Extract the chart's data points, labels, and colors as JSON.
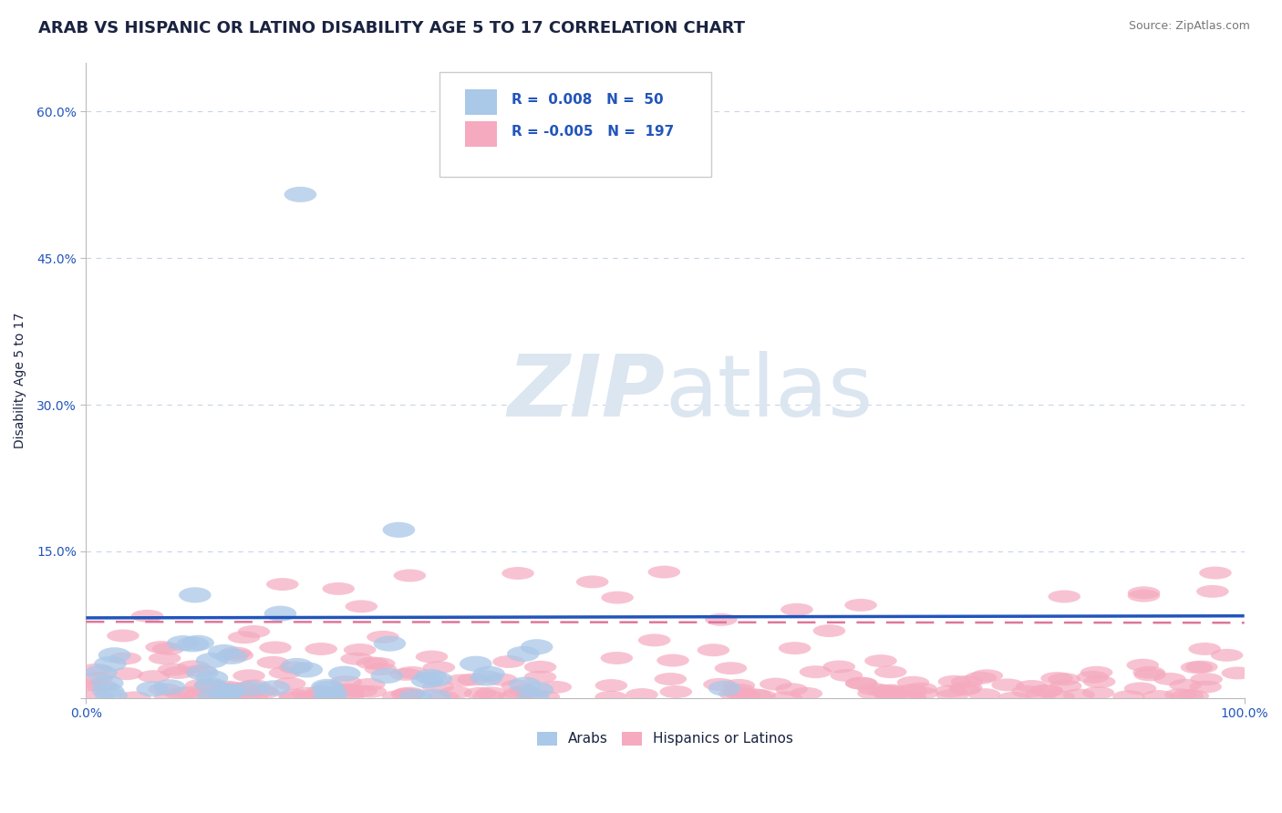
{
  "title": "ARAB VS HISPANIC OR LATINO DISABILITY AGE 5 TO 17 CORRELATION CHART",
  "source_text": "Source: ZipAtlas.com",
  "ylabel": "Disability Age 5 to 17",
  "xlim": [
    0,
    1
  ],
  "ylim": [
    0,
    0.65
  ],
  "ytick_vals": [
    0.0,
    0.15,
    0.3,
    0.45,
    0.6
  ],
  "ytick_labels": [
    "",
    "15.0%",
    "30.0%",
    "45.0%",
    "60.0%"
  ],
  "xtick_vals": [
    0.0,
    1.0
  ],
  "xtick_labels": [
    "0.0%",
    "100.0%"
  ],
  "arab_R": 0.008,
  "arab_N": 50,
  "hispanic_R": -0.005,
  "hispanic_N": 197,
  "arab_color": "#aac8e8",
  "hispanic_color": "#f5aabf",
  "arab_line_color": "#2255bb",
  "hispanic_line_color": "#dd7799",
  "title_color": "#1a2340",
  "source_color": "#777777",
  "legend_text_color": "#2255bb",
  "background_color": "#ffffff",
  "grid_color": "#c8d4e8",
  "watermark_color": "#dce6f0",
  "title_fontsize": 13,
  "axis_label_fontsize": 10,
  "tick_fontsize": 10,
  "arab_line_y": 0.082,
  "arab_line_slope": 0.002,
  "hisp_line_y": 0.078,
  "hisp_line_slope": -0.001
}
